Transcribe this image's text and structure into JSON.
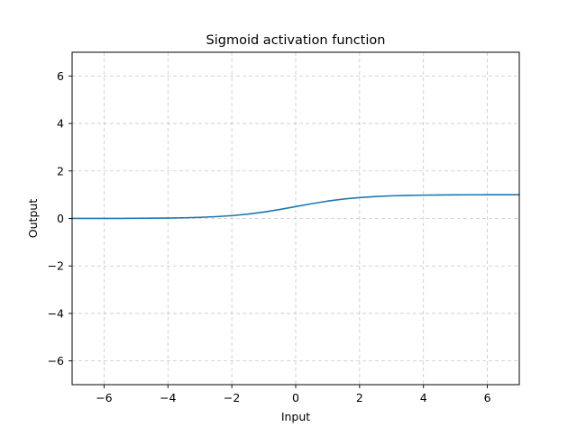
{
  "chart_data": {
    "type": "line",
    "title": "Sigmoid activation function",
    "xlabel": "Input",
    "ylabel": "Output",
    "xlim": [
      -7,
      7
    ],
    "ylim": [
      -7,
      7
    ],
    "xticks": [
      -6,
      -4,
      -2,
      0,
      2,
      4,
      6
    ],
    "yticks": [
      -6,
      -4,
      -2,
      0,
      2,
      4,
      6
    ],
    "grid": true,
    "grid_style": "dashed",
    "series": [
      {
        "color": "#1f77b4",
        "x": [
          -7,
          -6.5,
          -6,
          -5.5,
          -5,
          -4.5,
          -4,
          -3.5,
          -3,
          -2.5,
          -2,
          -1.5,
          -1,
          -0.5,
          0,
          0.5,
          1,
          1.5,
          2,
          2.5,
          3,
          3.5,
          4,
          4.5,
          5,
          5.5,
          6,
          6.5,
          7
        ],
        "y": [
          0.0009,
          0.0015,
          0.0025,
          0.0041,
          0.0067,
          0.011,
          0.018,
          0.029,
          0.047,
          0.076,
          0.119,
          0.182,
          0.269,
          0.378,
          0.5,
          0.622,
          0.731,
          0.818,
          0.881,
          0.924,
          0.953,
          0.971,
          0.982,
          0.989,
          0.993,
          0.996,
          0.998,
          0.999,
          0.999
        ]
      }
    ]
  }
}
